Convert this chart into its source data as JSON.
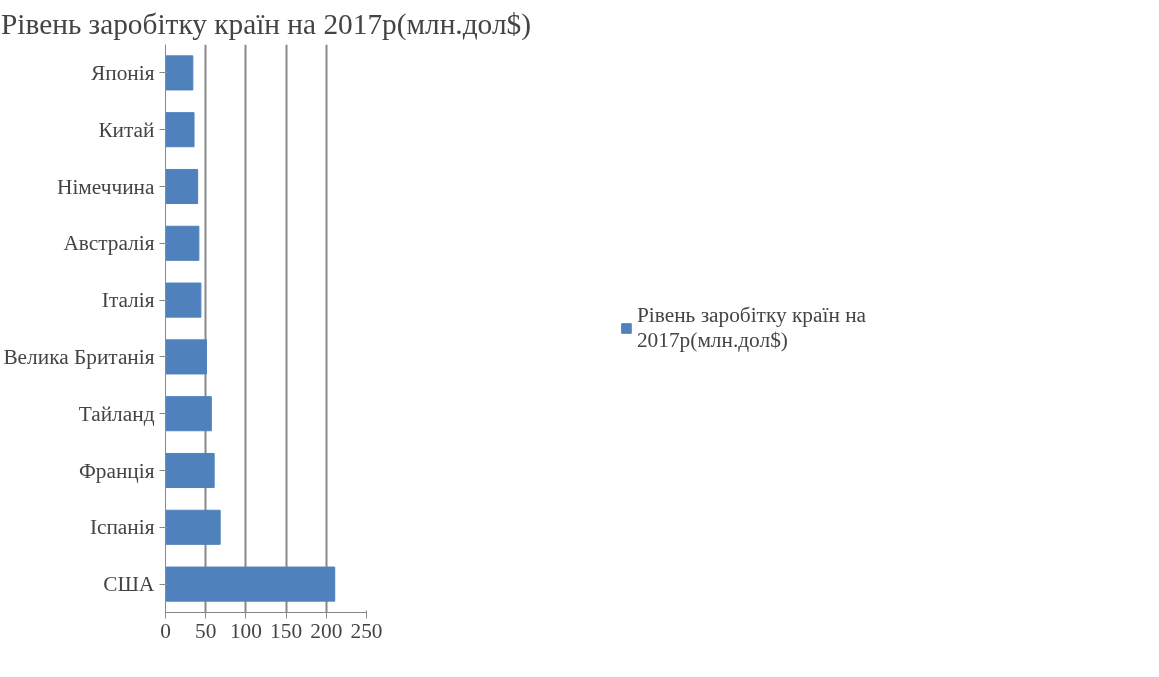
{
  "chart_data": {
    "type": "bar",
    "orientation": "horizontal",
    "title": "Рівень заробітку країн на 2017р(млн.дол$)",
    "categories": [
      "Японія",
      "Китай",
      "Німеччина",
      "Австралія",
      "Італія",
      "Велика Британія",
      "Тайланд",
      "Франція",
      "Іспанія",
      "США"
    ],
    "series": [
      {
        "name": "Рівень заробітку країн на 2017р(млн.дол$)",
        "color": "#4f81bd",
        "values": [
          34,
          35.5,
          40,
          41.5,
          44,
          51,
          57,
          60.5,
          68,
          210.5
        ]
      }
    ],
    "xlim": [
      0,
      250
    ],
    "xticks": [
      0,
      50,
      100,
      150,
      200,
      250
    ],
    "grid": "x",
    "legend": "right"
  }
}
